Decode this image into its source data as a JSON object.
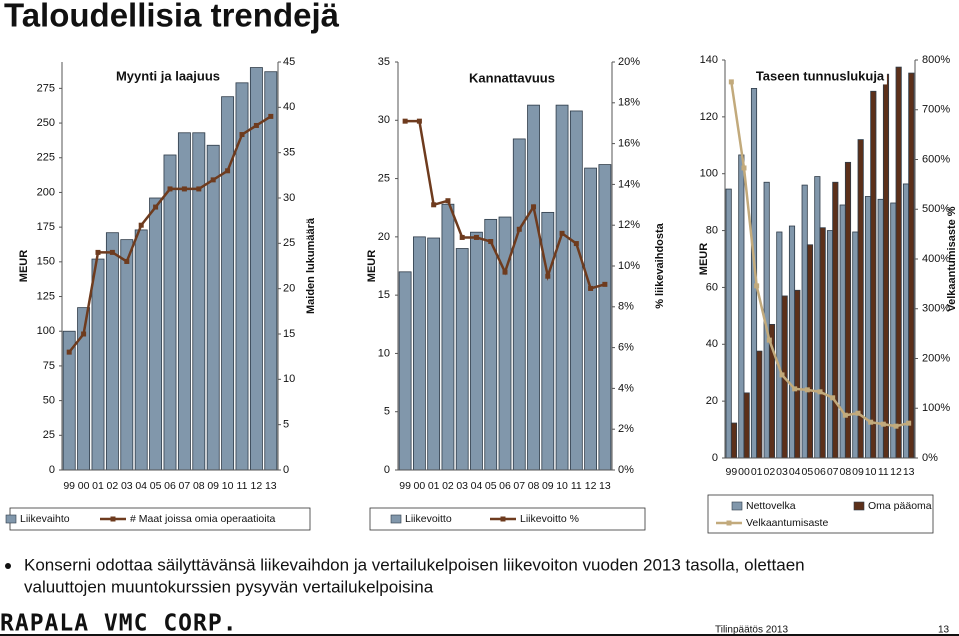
{
  "title": "Taloudellisia trendejä",
  "chart_data": [
    {
      "type": "combo",
      "title": "Myynti ja laajuus",
      "y_label": "MEUR",
      "y2_label": "Maiden lukumäärä",
      "categories": [
        "99",
        "00",
        "01",
        "02",
        "03",
        "04",
        "05",
        "06",
        "07",
        "08",
        "09",
        "10",
        "11",
        "12",
        "13"
      ],
      "ylim": [
        0,
        294
      ],
      "yticks": [
        0,
        25,
        50,
        75,
        100,
        125,
        150,
        175,
        200,
        225,
        250,
        275
      ],
      "y2lim": [
        0,
        45
      ],
      "y2ticks": [
        0,
        5,
        10,
        15,
        20,
        25,
        30,
        35,
        40,
        45
      ],
      "series": [
        {
          "name": "Liikevaihto",
          "type": "bar",
          "color": "#8197ab",
          "values": [
            100,
            117,
            152,
            171,
            166,
            173,
            196,
            227,
            243,
            243,
            234,
            269,
            279,
            290,
            287
          ]
        },
        {
          "name": "# Maat joissa omia operaatioita",
          "type": "line",
          "axis": "y2",
          "color": "#6e3b1e",
          "values": [
            13,
            15,
            24,
            24,
            23,
            27,
            29,
            31,
            31,
            31,
            32,
            33,
            37,
            38,
            39
          ]
        }
      ]
    },
    {
      "type": "combo",
      "title": "Kannattavuus",
      "y_label": "MEUR",
      "y2_label": "% liikevaihdosta",
      "categories": [
        "99",
        "00",
        "01",
        "02",
        "03",
        "04",
        "05",
        "06",
        "07",
        "08",
        "09",
        "10",
        "11",
        "12",
        "13"
      ],
      "ylim": [
        0,
        35
      ],
      "yticks": [
        0,
        5,
        10,
        15,
        20,
        25,
        30,
        35
      ],
      "y2lim": [
        0,
        20
      ],
      "y2ticks": [
        {
          "value": 0,
          "label": "0%"
        },
        {
          "value": 2,
          "label": "2%"
        },
        {
          "value": 4,
          "label": "4%"
        },
        {
          "value": 6,
          "label": "6%"
        },
        {
          "value": 8,
          "label": "8%"
        },
        {
          "value": 10,
          "label": "10%"
        },
        {
          "value": 12,
          "label": "12%"
        },
        {
          "value": 14,
          "label": "14%"
        },
        {
          "value": 16,
          "label": "16%"
        },
        {
          "value": 18,
          "label": "18%"
        },
        {
          "value": 20,
          "label": "20%"
        }
      ],
      "series": [
        {
          "name": "Liikevoitto",
          "type": "bar",
          "color": "#8197ab",
          "values": [
            17,
            20,
            19.9,
            22.8,
            19,
            20.4,
            21.5,
            21.7,
            28.4,
            31.3,
            22.1,
            31.3,
            30.8,
            25.9,
            26.2
          ]
        },
        {
          "name": "Liikevoitto %",
          "type": "line",
          "axis": "y2",
          "color": "#6e3b1e",
          "values": [
            17.1,
            17.1,
            13,
            13.2,
            11.4,
            11.4,
            11.2,
            9.7,
            11.8,
            12.9,
            9.5,
            11.6,
            11.1,
            8.9,
            9.1
          ]
        }
      ]
    },
    {
      "type": "combo",
      "title": "Taseen tunnuslukuja",
      "y_label": "MEUR",
      "y2_label": "Velkaantumisaste %",
      "categories": [
        "99",
        "00",
        "01",
        "02",
        "03",
        "04",
        "05",
        "06",
        "07",
        "08",
        "09",
        "10",
        "11",
        "12",
        "13"
      ],
      "ylim": [
        0,
        140
      ],
      "yticks": [
        0,
        20,
        40,
        60,
        80,
        100,
        120,
        140
      ],
      "y2lim": [
        0,
        800
      ],
      "y2ticks": [
        {
          "value": 0,
          "label": "0%"
        },
        {
          "value": 100,
          "label": "100%"
        },
        {
          "value": 200,
          "label": "200%"
        },
        {
          "value": 300,
          "label": "300%"
        },
        {
          "value": 400,
          "label": "400%"
        },
        {
          "value": 500,
          "label": "500%"
        },
        {
          "value": 600,
          "label": "600%"
        },
        {
          "value": 700,
          "label": "700%"
        },
        {
          "value": 800,
          "label": "800%"
        }
      ],
      "series": [
        {
          "name": "Nettovelka",
          "type": "bar",
          "color": "#8197ab",
          "values": [
            94.6,
            106.6,
            130,
            97,
            79.5,
            81.6,
            96,
            99,
            80,
            89,
            79.5,
            92,
            91,
            89.7,
            96.4
          ]
        },
        {
          "name": "Oma pääoma",
          "type": "bar",
          "color": "#5c301a",
          "values": [
            12.3,
            22.9,
            37.6,
            47,
            57,
            59,
            75,
            81,
            97,
            104,
            112,
            129,
            135,
            137.5,
            135.4
          ]
        },
        {
          "name": "Velkaantumisaste",
          "type": "line",
          "axis": "y2",
          "color": "#c2aa7c",
          "values": [
            756,
            583,
            346,
            237,
            167,
            139,
            137,
            133,
            121,
            86,
            90,
            72,
            68,
            64,
            70
          ]
        }
      ]
    }
  ],
  "bullet": [
    "Konserni odottaa säilyttävänsä liikevaihdon ja vertailukelpoisen liikevoiton vuoden 2013 tasolla, olettaen",
    "valuuttojen muuntokurssien pysyvän vertailukelpoisina"
  ],
  "footer": {
    "logo": "RAPALA VMC CORP.",
    "text": "Tilinpäätös 2013",
    "page": "13"
  }
}
